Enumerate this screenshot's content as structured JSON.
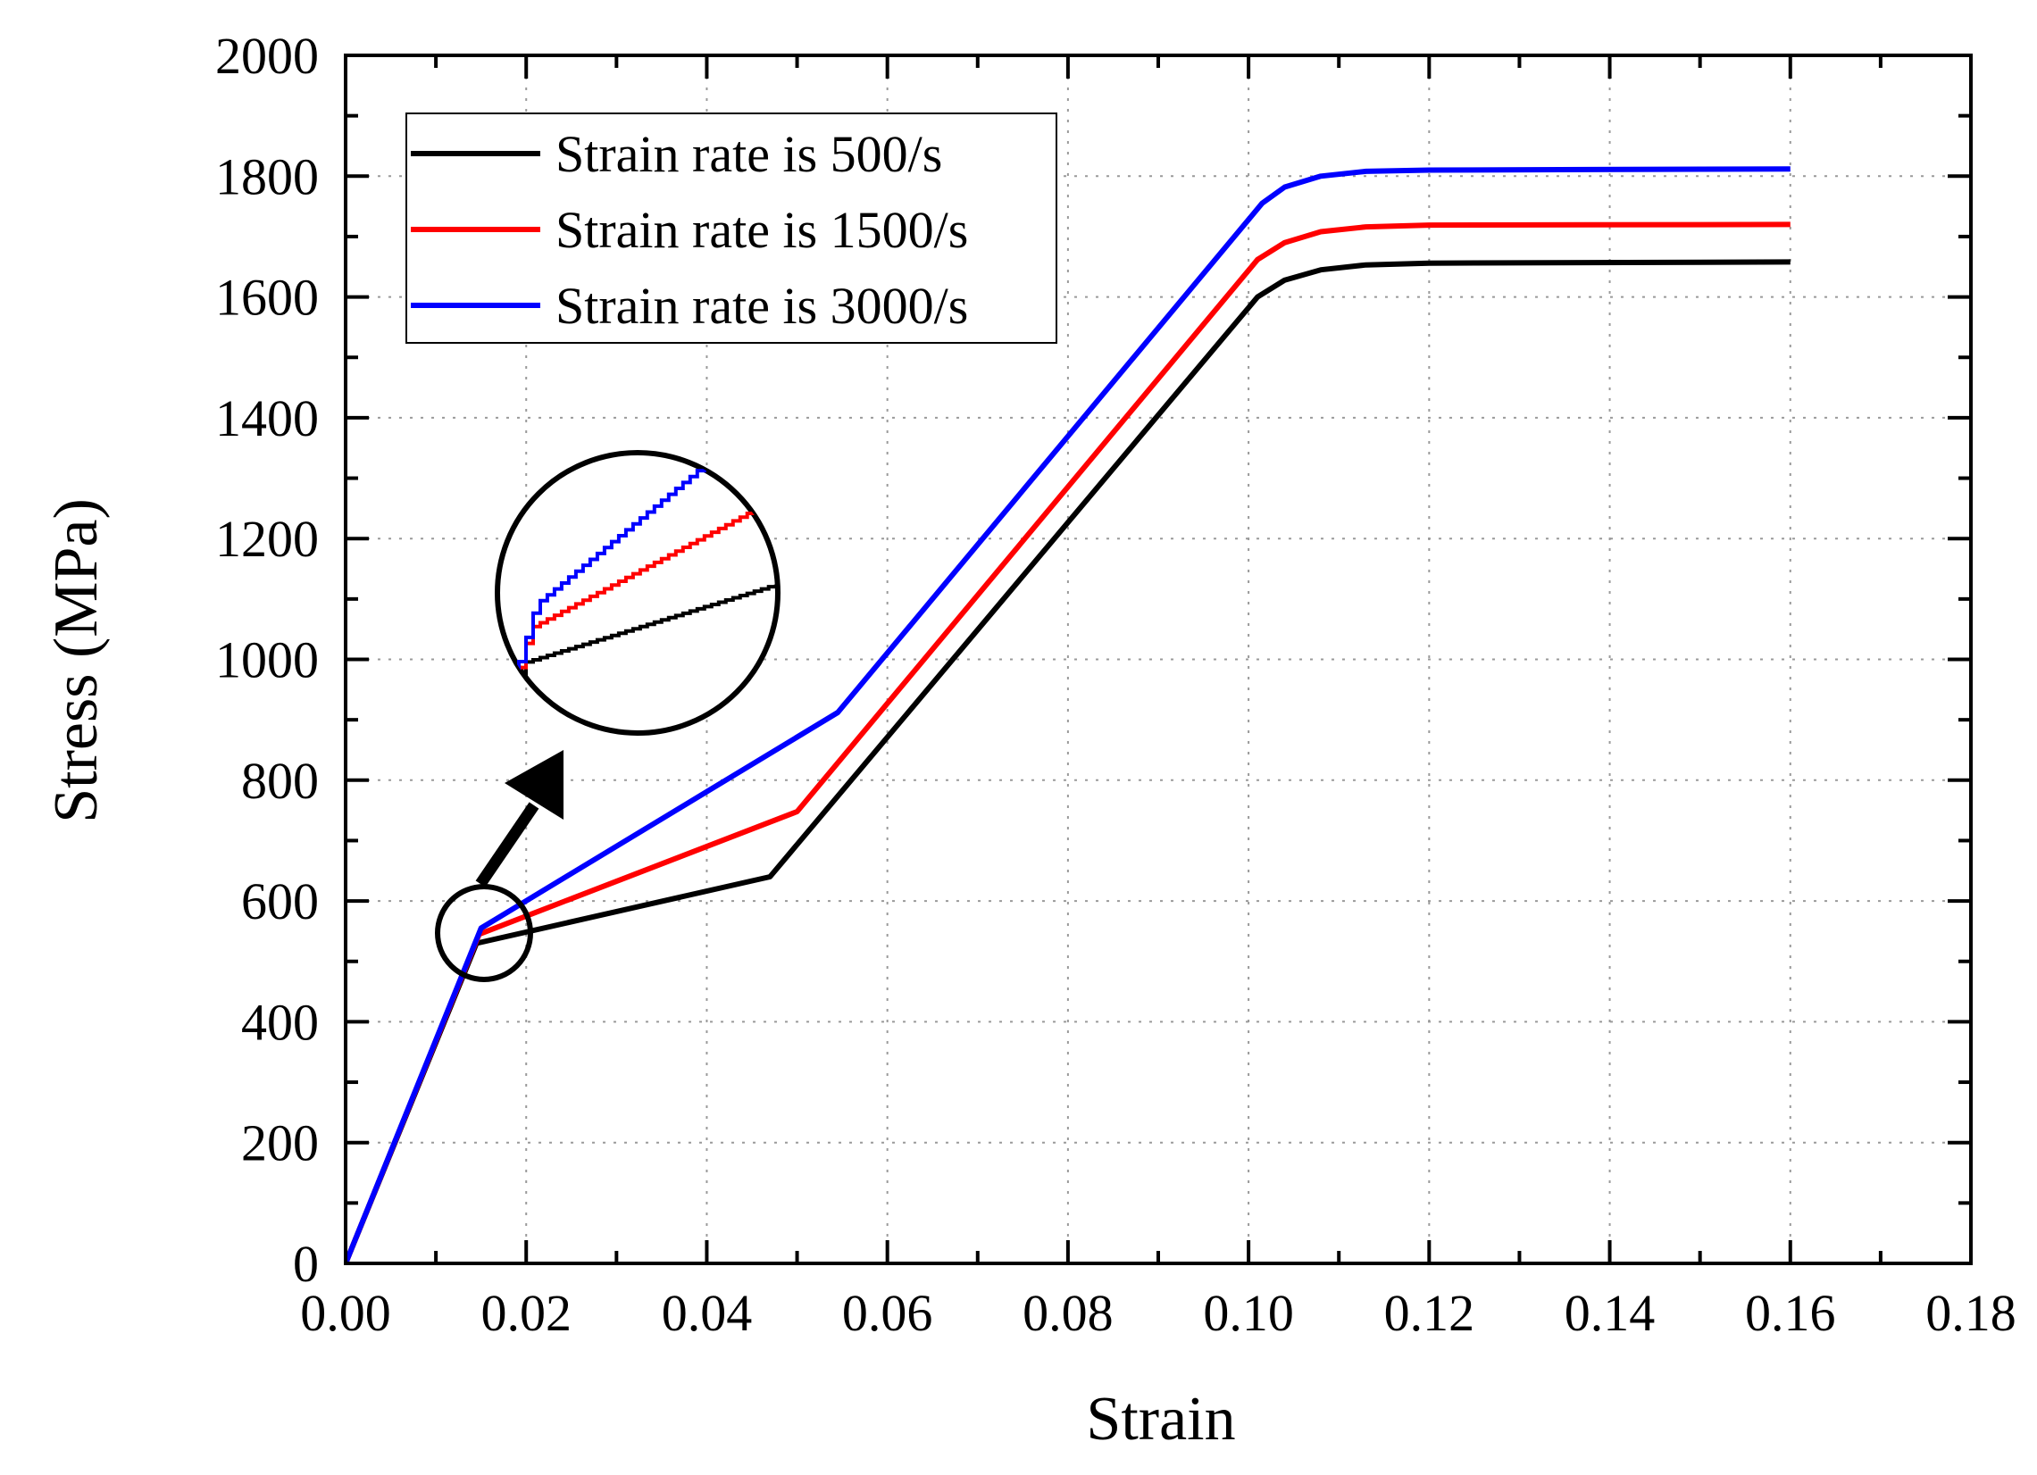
{
  "chart_data": {
    "type": "line",
    "title": "",
    "xlabel": "Strain",
    "ylabel": "Stress (MPa)",
    "xlim": [
      0,
      0.18
    ],
    "ylim": [
      0,
      2000
    ],
    "grid": true,
    "legend_position": "top-left",
    "x_ticks": [
      "0.00",
      "0.02",
      "0.04",
      "0.06",
      "0.08",
      "0.10",
      "0.12",
      "0.14",
      "0.16",
      "0.18"
    ],
    "y_ticks": [
      "0",
      "200",
      "400",
      "600",
      "800",
      "1000",
      "1200",
      "1400",
      "1600",
      "1800",
      "2000"
    ],
    "series": [
      {
        "name": "Strain rate is 500/s",
        "color": "#000000",
        "points": [
          [
            0,
            0
          ],
          [
            0.0145,
            530
          ],
          [
            0.047,
            640
          ],
          [
            0.101,
            1600
          ],
          [
            0.104,
            1628
          ],
          [
            0.108,
            1645
          ],
          [
            0.113,
            1653
          ],
          [
            0.12,
            1656
          ],
          [
            0.16,
            1658
          ]
        ]
      },
      {
        "name": "Strain rate is 1500/s",
        "color": "#ff0000",
        "points": [
          [
            0,
            0
          ],
          [
            0.0148,
            545
          ],
          [
            0.05,
            748
          ],
          [
            0.101,
            1662
          ],
          [
            0.104,
            1690
          ],
          [
            0.108,
            1708
          ],
          [
            0.113,
            1716
          ],
          [
            0.12,
            1719
          ],
          [
            0.16,
            1720
          ]
        ]
      },
      {
        "name": "Strain rate is 3000/s",
        "color": "#0000ff",
        "points": [
          [
            0,
            0
          ],
          [
            0.015,
            555
          ],
          [
            0.0545,
            912
          ],
          [
            0.1015,
            1755
          ],
          [
            0.104,
            1782
          ],
          [
            0.108,
            1800
          ],
          [
            0.113,
            1808
          ],
          [
            0.12,
            1810
          ],
          [
            0.16,
            1812
          ]
        ]
      }
    ],
    "annotations": [
      {
        "type": "zoom-inset",
        "description": "magnified view of yield point region near strain 0.015"
      }
    ]
  }
}
